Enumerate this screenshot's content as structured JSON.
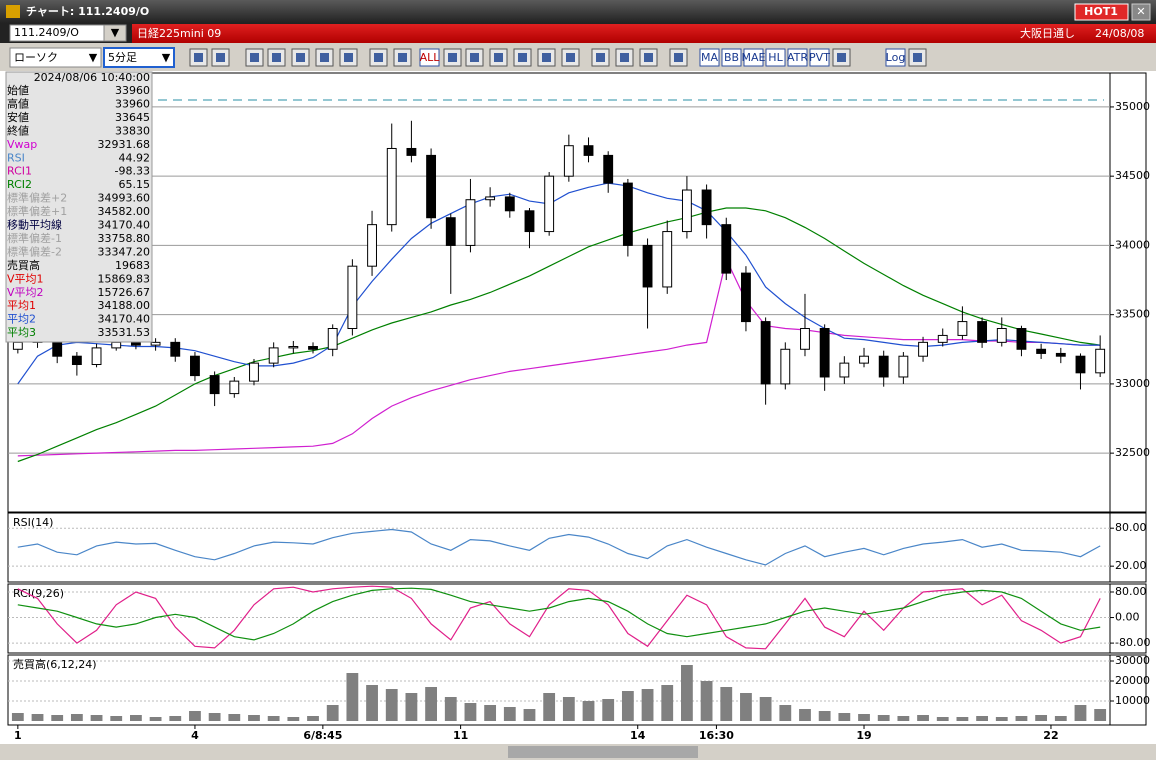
{
  "window": {
    "title": "チャート: 111.2409/O",
    "hot_button": "HOT1"
  },
  "symbol_bar": {
    "symbol": "111.2409/O",
    "instrument": "日経225mini 09",
    "session": "大阪日通し",
    "date": "24/08/08"
  },
  "toolbar": {
    "chart_style": "ローソク",
    "interval": "5分足",
    "icon_labels": [
      "ALL",
      "MA",
      "BB",
      "MAE",
      "HL",
      "ATR",
      "PVT",
      "Log"
    ]
  },
  "info_panel": {
    "timestamp": "2024/08/06 10:40:00",
    "rows": [
      {
        "label": "始値",
        "value": "33960",
        "color": "#000000"
      },
      {
        "label": "高値",
        "value": "33960",
        "color": "#000000"
      },
      {
        "label": "安値",
        "value": "33645",
        "color": "#000000"
      },
      {
        "label": "終値",
        "value": "33830",
        "color": "#000000"
      },
      {
        "label": "Vwap",
        "value": "32931.68",
        "color": "#d000d0"
      },
      {
        "label": "RSI",
        "value": "44.92",
        "color": "#4a86c8"
      },
      {
        "label": "RCI1",
        "value": "-98.33",
        "color": "#d000a0"
      },
      {
        "label": "RCI2",
        "value": "65.15",
        "color": "#008000"
      },
      {
        "label": "標準偏差+2",
        "value": "34993.60",
        "color": "#a0a0a0"
      },
      {
        "label": "標準偏差+1",
        "value": "34582.00",
        "color": "#a0a0a0"
      },
      {
        "label": "移動平均線",
        "value": "34170.40",
        "color": "#000040"
      },
      {
        "label": "標準偏差-1",
        "value": "33758.80",
        "color": "#a0a0a0"
      },
      {
        "label": "標準偏差-2",
        "value": "33347.20",
        "color": "#a0a0a0"
      },
      {
        "label": "売買高",
        "value": "19683",
        "color": "#000000"
      },
      {
        "label": "V平均1",
        "value": "15869.83",
        "color": "#e00000"
      },
      {
        "label": "V平均2",
        "value": "15726.67",
        "color": "#c000c0"
      },
      {
        "label": "平均1",
        "value": "34188.00",
        "color": "#e00000"
      },
      {
        "label": "平均2",
        "value": "34170.40",
        "color": "#2050d0"
      },
      {
        "label": "平均3",
        "value": "33531.53",
        "color": "#008000"
      }
    ]
  },
  "chart_data": [
    {
      "type": "candlestick",
      "ylim": [
        32075,
        35245
      ],
      "yticks": [
        32500,
        33000,
        33500,
        34000,
        34500,
        35000
      ],
      "grid": true,
      "level": 35050,
      "level_color": "#2a8fa6",
      "up_color": "#ffffff",
      "down_color": "#000000",
      "open": [
        33250,
        33300,
        33320,
        33200,
        33140,
        33260,
        33300,
        33280,
        33300,
        33200,
        33060,
        32930,
        33020,
        33150,
        33260,
        33270,
        33250,
        33400,
        33850,
        34150,
        34700,
        34650,
        34200,
        34000,
        34330,
        34350,
        34250,
        34100,
        34500,
        34720,
        34650,
        34450,
        34000,
        33700,
        34100,
        34400,
        34150,
        33800,
        33450,
        33000,
        33250,
        33400,
        33050,
        33150,
        33200,
        33050,
        33200,
        33300,
        33350,
        33450,
        33300,
        33400,
        33250,
        33220,
        33200,
        33080
      ],
      "high": [
        33320,
        33360,
        33350,
        33230,
        33290,
        33330,
        33340,
        33330,
        33330,
        33230,
        33090,
        33050,
        33180,
        33300,
        33310,
        33300,
        33430,
        33900,
        34250,
        34880,
        34900,
        34700,
        34230,
        34480,
        34420,
        34380,
        34270,
        34530,
        34800,
        34780,
        34680,
        34480,
        34050,
        34180,
        34500,
        34440,
        34200,
        33850,
        33480,
        33300,
        33650,
        33430,
        33200,
        33260,
        33240,
        33230,
        33340,
        33400,
        33560,
        33480,
        33480,
        33420,
        33290,
        33260,
        33220,
        33350
      ],
      "low": [
        33220,
        33260,
        33150,
        33060,
        33120,
        33240,
        33250,
        33240,
        33160,
        33020,
        32840,
        32900,
        32990,
        33120,
        33220,
        33220,
        33200,
        33350,
        33780,
        34100,
        34600,
        34120,
        33650,
        33950,
        34280,
        34200,
        33980,
        34070,
        34460,
        34600,
        34380,
        33920,
        33400,
        33650,
        34050,
        34050,
        33750,
        33380,
        32850,
        32960,
        33200,
        32950,
        33000,
        33120,
        32980,
        33000,
        33160,
        33270,
        33320,
        33260,
        33270,
        33200,
        33180,
        33150,
        32960,
        33050
      ],
      "close": [
        33300,
        33320,
        33200,
        33140,
        33260,
        33300,
        33280,
        33300,
        33200,
        33060,
        32930,
        33020,
        33150,
        33260,
        33270,
        33250,
        33400,
        33850,
        34150,
        34700,
        34650,
        34200,
        34000,
        34330,
        34350,
        34250,
        34100,
        34500,
        34720,
        34650,
        34450,
        34000,
        33700,
        34100,
        34400,
        34150,
        33800,
        33450,
        33000,
        33250,
        33400,
        33050,
        33150,
        33200,
        33050,
        33200,
        33300,
        33350,
        33450,
        33300,
        33400,
        33250,
        33220,
        33200,
        33080,
        33250
      ],
      "series": [
        {
          "color": "#d020d0",
          "values": [
            32480,
            32485,
            32490,
            32495,
            32500,
            32505,
            32510,
            32515,
            32520,
            32520,
            32525,
            32530,
            32535,
            32540,
            32545,
            32550,
            32570,
            32640,
            32750,
            32840,
            32900,
            32950,
            32990,
            33030,
            33060,
            33090,
            33110,
            33130,
            33150,
            33170,
            33190,
            33210,
            33230,
            33250,
            33280,
            33300,
            33900,
            33600,
            33420,
            33400,
            33390,
            33370,
            33350,
            33340,
            33330,
            33320,
            33320,
            33320,
            33320,
            33310,
            33310,
            33300,
            33300,
            33290,
            33280,
            33280
          ]
        },
        {
          "color": "#008000",
          "values": [
            32440,
            32490,
            32550,
            32610,
            32670,
            32720,
            32780,
            32840,
            32920,
            33000,
            33060,
            33110,
            33160,
            33190,
            33220,
            33240,
            33270,
            33330,
            33390,
            33440,
            33480,
            33520,
            33570,
            33610,
            33660,
            33720,
            33780,
            33850,
            33920,
            33990,
            34040,
            34090,
            34130,
            34170,
            34200,
            34240,
            34270,
            34270,
            34250,
            34200,
            34130,
            34050,
            33960,
            33870,
            33790,
            33710,
            33640,
            33580,
            33520,
            33470,
            33430,
            33390,
            33360,
            33330,
            33300,
            33280
          ]
        },
        {
          "color": "#2050d0",
          "values": [
            33000,
            33200,
            33280,
            33300,
            33290,
            33280,
            33270,
            33270,
            33260,
            33240,
            33200,
            33160,
            33130,
            33130,
            33150,
            33190,
            33280,
            33560,
            33740,
            33900,
            34050,
            34160,
            34230,
            34300,
            34350,
            34370,
            34320,
            34300,
            34380,
            34420,
            34450,
            34430,
            34380,
            34340,
            34320,
            34250,
            34100,
            33930,
            33700,
            33580,
            33480,
            33400,
            33330,
            33320,
            33300,
            33280,
            33270,
            33280,
            33300,
            33310,
            33320,
            33310,
            33300,
            33290,
            33280,
            33280
          ]
        }
      ]
    },
    {
      "type": "line",
      "title": "RSI(14)",
      "ylim": [
        -5,
        104
      ],
      "yticks": [
        {
          "value": 80,
          "label": "80.00"
        },
        {
          "value": 20,
          "label": "20.00"
        }
      ],
      "grid": true,
      "series": [
        {
          "color": "#4a86c8",
          "values": [
            50,
            55,
            42,
            38,
            52,
            58,
            55,
            56,
            45,
            35,
            30,
            40,
            52,
            58,
            57,
            55,
            65,
            72,
            75,
            78,
            74,
            55,
            45,
            62,
            60,
            52,
            45,
            64,
            70,
            66,
            55,
            40,
            32,
            52,
            62,
            50,
            40,
            30,
            22,
            40,
            52,
            35,
            42,
            48,
            38,
            48,
            55,
            58,
            62,
            50,
            55,
            45,
            44,
            42,
            35,
            52
          ]
        }
      ]
    },
    {
      "type": "line",
      "title": "RCI(9,26)",
      "ylim": [
        -111,
        105
      ],
      "yticks": [
        {
          "value": 80,
          "label": "80.00"
        },
        {
          "value": 0,
          "label": "0.00"
        },
        {
          "value": -80,
          "label": "-80.00"
        }
      ],
      "grid": true,
      "series": [
        {
          "color": "#e0208a",
          "values": [
            90,
            60,
            -20,
            -80,
            -40,
            40,
            80,
            60,
            -30,
            -90,
            -95,
            -40,
            40,
            90,
            95,
            80,
            90,
            95,
            98,
            95,
            60,
            -20,
            -70,
            30,
            50,
            -20,
            -60,
            40,
            90,
            85,
            40,
            -50,
            -90,
            -10,
            70,
            40,
            -60,
            -95,
            -98,
            -20,
            60,
            -30,
            -60,
            20,
            -40,
            30,
            80,
            85,
            90,
            40,
            70,
            -10,
            -40,
            -80,
            -60,
            60
          ]
        },
        {
          "color": "#109010",
          "values": [
            40,
            30,
            20,
            0,
            -20,
            -30,
            -20,
            0,
            10,
            0,
            -30,
            -60,
            -70,
            -50,
            -20,
            20,
            50,
            70,
            85,
            90,
            92,
            88,
            70,
            50,
            40,
            30,
            20,
            30,
            50,
            60,
            50,
            20,
            -20,
            -50,
            -60,
            -50,
            -40,
            -30,
            -20,
            0,
            20,
            30,
            20,
            10,
            20,
            30,
            50,
            70,
            80,
            85,
            80,
            60,
            20,
            -20,
            -40,
            -30
          ]
        }
      ]
    },
    {
      "type": "bar",
      "title": "売買高(6,12,24)",
      "ylim": [
        -2000,
        33000
      ],
      "yticks": [
        10000,
        20000,
        30000
      ],
      "grid": true,
      "color": "#808080",
      "values": [
        4000,
        3500,
        3000,
        3500,
        3000,
        2500,
        3000,
        2000,
        2500,
        5000,
        4000,
        3500,
        3000,
        2500,
        2000,
        2500,
        8000,
        24000,
        18000,
        16000,
        14000,
        17000,
        12000,
        9000,
        8000,
        7000,
        6000,
        14000,
        12000,
        10000,
        11000,
        15000,
        16000,
        18000,
        28000,
        20000,
        17000,
        14000,
        12000,
        8000,
        6000,
        5000,
        4000,
        3500,
        3000,
        2500,
        3000,
        2000,
        2000,
        2500,
        2000,
        2500,
        3000,
        2500,
        8000,
        6000
      ],
      "xlim": [
        -0.5,
        55.5
      ],
      "xticks": [
        {
          "value": 0,
          "label": "1"
        },
        {
          "value": 9,
          "label": "4"
        },
        {
          "value": 15.5,
          "label": "6/8:45"
        },
        {
          "value": 22.5,
          "label": "11"
        },
        {
          "value": 31.5,
          "label": "14"
        },
        {
          "value": 35.5,
          "label": "16:30"
        },
        {
          "value": 43,
          "label": "19"
        },
        {
          "value": 52.5,
          "label": "22"
        }
      ]
    }
  ]
}
